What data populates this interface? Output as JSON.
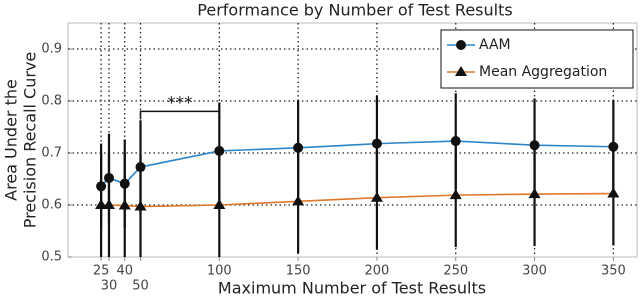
{
  "chart_data": {
    "type": "line",
    "title": "Performance by Number of Test Results",
    "xlabel": "Maximum Number of Test Results",
    "ylabel": [
      "Area Under the",
      "Precision Recall Curve"
    ],
    "x": [
      25,
      30,
      40,
      50,
      100,
      150,
      200,
      250,
      300,
      350
    ],
    "series": [
      {
        "name": "AAM",
        "color": "#2e86c8",
        "marker": "circle",
        "values": [
          0.636,
          0.652,
          0.641,
          0.673,
          0.704,
          0.71,
          0.718,
          0.723,
          0.715,
          0.712
        ],
        "error": [
          0.082,
          0.085,
          0.085,
          0.09,
          0.093,
          0.092,
          0.092,
          0.092,
          0.09,
          0.09
        ]
      },
      {
        "name": "Mean Aggregation",
        "color": "#e0782a",
        "marker": "triangle",
        "values": [
          0.6,
          0.6,
          0.599,
          0.597,
          0.6,
          0.607,
          0.614,
          0.619,
          0.621,
          0.622
        ],
        "error": [
          0.1,
          0.1,
          0.1,
          0.1,
          0.1,
          0.1,
          0.1,
          0.1,
          0.1,
          0.1
        ]
      }
    ],
    "xlim": [
      4,
      365
    ],
    "ylim": [
      0.5,
      0.95
    ],
    "xticks": [
      25,
      30,
      40,
      50,
      100,
      150,
      200,
      250,
      300,
      350
    ],
    "yticks": [
      0.5,
      0.6,
      0.7,
      0.8,
      0.9
    ],
    "grid": true,
    "legend": "upper right",
    "annotation": {
      "text": "***",
      "x": [
        50,
        100
      ],
      "y": 0.78
    }
  }
}
